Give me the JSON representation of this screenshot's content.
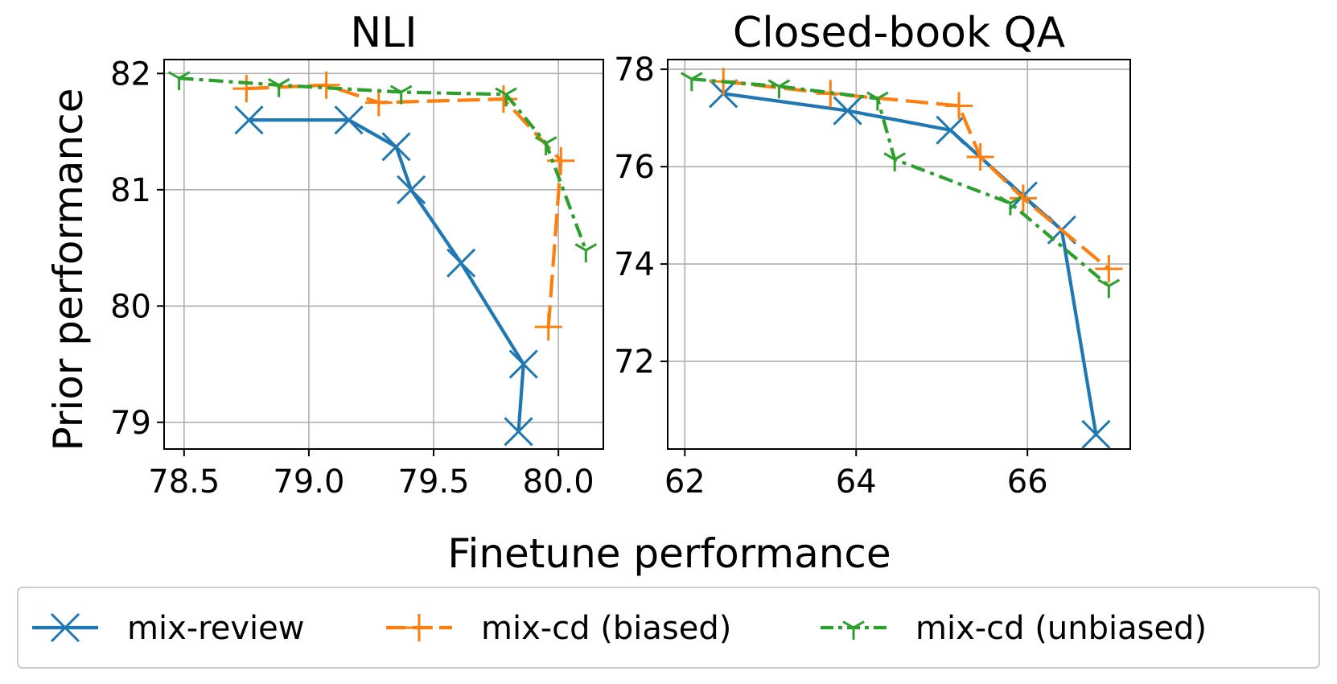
{
  "chart_data": [
    {
      "type": "line",
      "title": "NLI",
      "xlim": [
        78.42,
        80.18
      ],
      "ylim": [
        78.77,
        82.12
      ],
      "xticks": [
        {
          "value": 78.5,
          "label": "78.5"
        },
        {
          "value": 79.0,
          "label": "79.0"
        },
        {
          "value": 79.5,
          "label": "79.5"
        },
        {
          "value": 80.0,
          "label": "80.0"
        }
      ],
      "yticks": [
        {
          "value": 79,
          "label": "79"
        },
        {
          "value": 80,
          "label": "80"
        },
        {
          "value": 81,
          "label": "81"
        },
        {
          "value": 82,
          "label": "82"
        }
      ],
      "grid": true,
      "series": [
        {
          "name": "mix-review",
          "color": "#1f77b4",
          "style": "solid",
          "marker": "x",
          "x": [
            78.76,
            79.16,
            79.35,
            79.41,
            79.61,
            79.86,
            79.84
          ],
          "y": [
            81.6,
            81.6,
            81.37,
            81.0,
            80.37,
            79.5,
            78.92
          ]
        },
        {
          "name": "mix-cd (biased)",
          "color": "#ff7f0e",
          "style": "dashed",
          "marker": "plus",
          "x": [
            78.75,
            79.07,
            79.28,
            79.78,
            80.01,
            79.96
          ],
          "y": [
            81.87,
            81.9,
            81.75,
            81.78,
            81.25,
            79.82
          ]
        },
        {
          "name": "mix-cd (unbiased)",
          "color": "#2ca02c",
          "style": "dashdot",
          "marker": "tri_down",
          "x": [
            78.48,
            78.88,
            79.37,
            79.79,
            79.95,
            80.11
          ],
          "y": [
            81.96,
            81.9,
            81.84,
            81.82,
            81.4,
            80.48
          ]
        }
      ]
    },
    {
      "type": "line",
      "title": "Closed-book QA",
      "xlim": [
        61.8,
        67.2
      ],
      "ylim": [
        70.2,
        78.2
      ],
      "xticks": [
        {
          "value": 62,
          "label": "62"
        },
        {
          "value": 64,
          "label": "64"
        },
        {
          "value": 66,
          "label": "66"
        }
      ],
      "yticks": [
        {
          "value": 72,
          "label": "72"
        },
        {
          "value": 74,
          "label": "74"
        },
        {
          "value": 76,
          "label": "76"
        },
        {
          "value": 78,
          "label": "78"
        }
      ],
      "grid": true,
      "series": [
        {
          "name": "mix-review",
          "color": "#1f77b4",
          "style": "solid",
          "marker": "x",
          "x": [
            62.45,
            63.9,
            65.1,
            65.95,
            66.4,
            66.8
          ],
          "y": [
            77.5,
            77.15,
            76.75,
            75.4,
            74.7,
            70.5
          ]
        },
        {
          "name": "mix-cd (biased)",
          "color": "#ff7f0e",
          "style": "dashed",
          "marker": "plus",
          "x": [
            62.45,
            63.7,
            65.2,
            65.45,
            65.95,
            66.95
          ],
          "y": [
            77.75,
            77.5,
            77.25,
            76.2,
            75.35,
            73.9
          ]
        },
        {
          "name": "mix-cd (unbiased)",
          "color": "#2ca02c",
          "style": "dashdot",
          "marker": "tri_down",
          "x": [
            62.08,
            63.1,
            64.25,
            64.45,
            65.8,
            66.95
          ],
          "y": [
            77.8,
            77.65,
            77.4,
            76.15,
            75.25,
            73.55
          ]
        }
      ]
    }
  ],
  "figure": {
    "ylabel": "Prior performance",
    "xlabel": "Finetune performance",
    "legend": {
      "placement": "bottom",
      "entries": [
        {
          "label": "mix-review",
          "color": "#1f77b4",
          "style": "solid",
          "marker": "x"
        },
        {
          "label": "mix-cd (biased)",
          "color": "#ff7f0e",
          "style": "dashed",
          "marker": "plus"
        },
        {
          "label": "mix-cd (unbiased)",
          "color": "#2ca02c",
          "style": "dashdot",
          "marker": "tri_down"
        }
      ]
    }
  }
}
